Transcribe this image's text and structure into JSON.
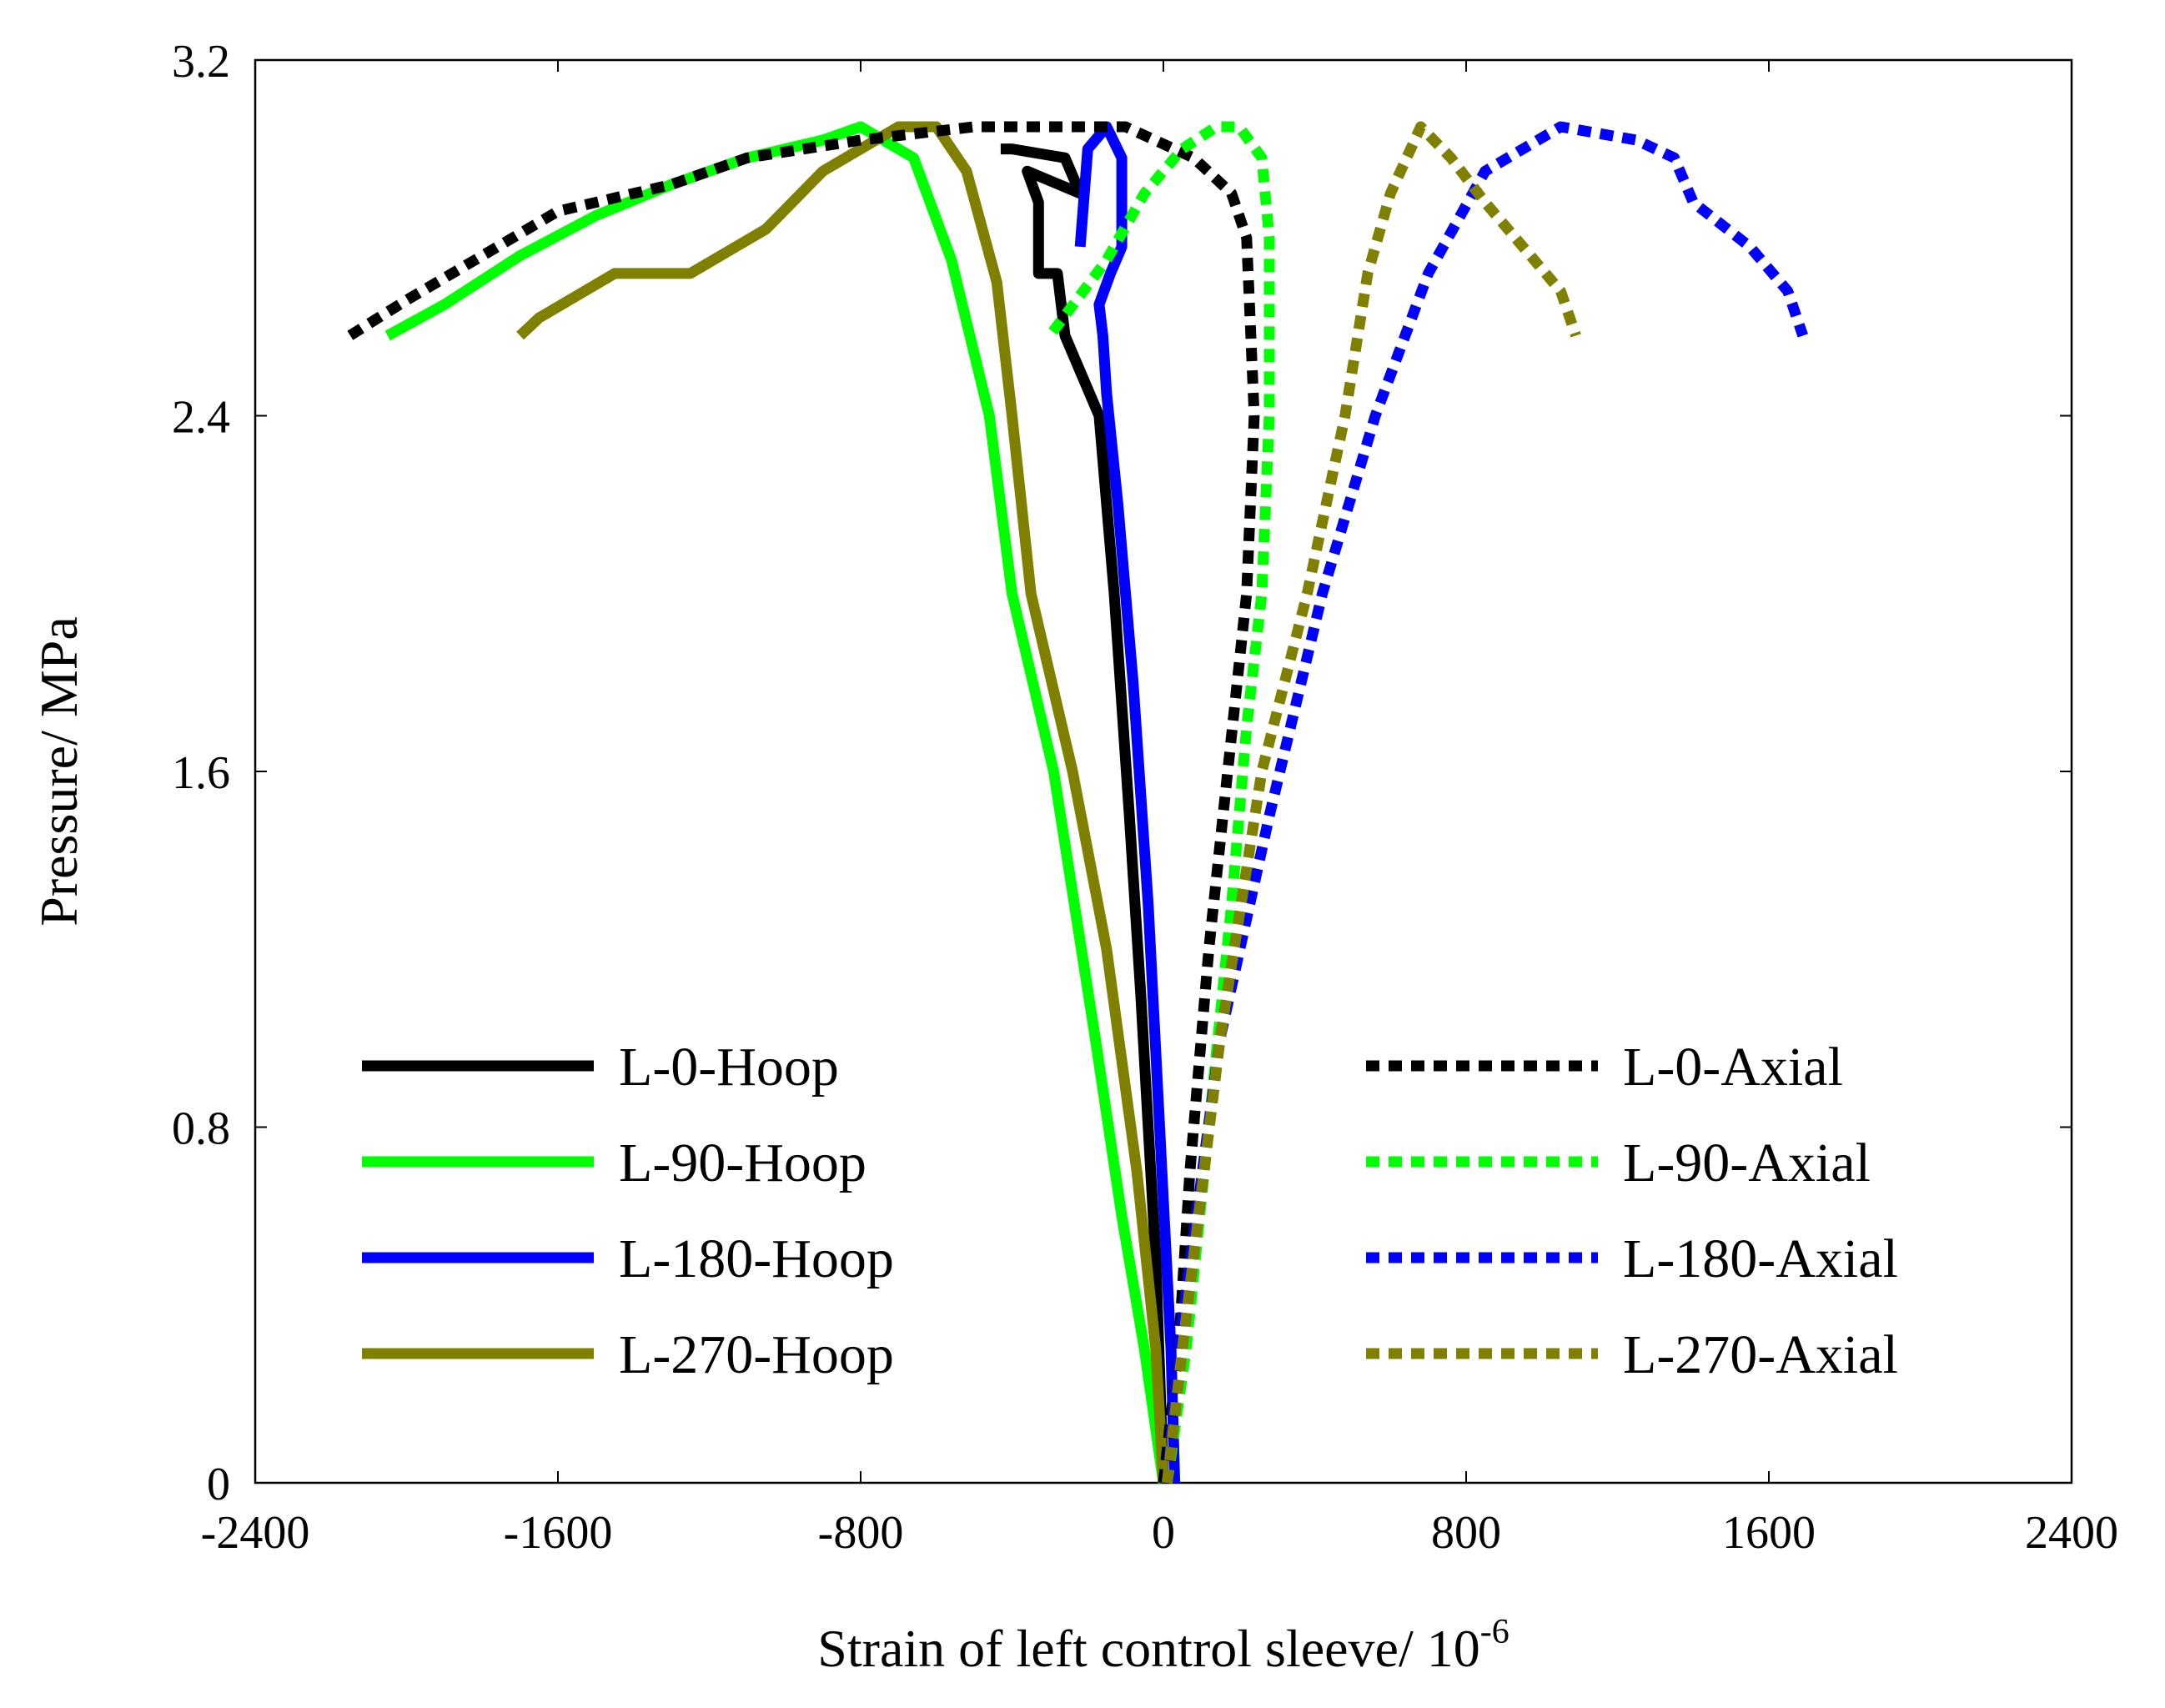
{
  "chart_data": {
    "type": "line",
    "title": "",
    "xlabel": "Strain of left control sleeve/ 10",
    "xlabel_exponent": "-6",
    "ylabel": "Pressure/ MPa",
    "xlim": [
      -2400,
      2400
    ],
    "ylim": [
      0,
      3.2
    ],
    "x_ticks": [
      -2400,
      -1600,
      -800,
      0,
      800,
      1600,
      2400
    ],
    "x_tick_labels": [
      "-2400",
      "-1600",
      "-800",
      "0",
      "800",
      "1600",
      "2400"
    ],
    "y_ticks": [
      0,
      0.8,
      1.6,
      2.4,
      3.2
    ],
    "y_tick_labels": [
      "0",
      "0.8",
      "1.6",
      "2.4",
      "3.2"
    ],
    "grid": false,
    "series": [
      {
        "name": "L-0-Hoop",
        "color": "#000000",
        "dash": "solid",
        "legend_col": 0,
        "legend_row": 0,
        "points": [
          [
            0,
            0
          ],
          [
            -10,
            0.25
          ],
          [
            -20,
            0.5
          ],
          [
            -40,
            0.8
          ],
          [
            -60,
            1.1
          ],
          [
            -90,
            1.5
          ],
          [
            -130,
            2.0
          ],
          [
            -170,
            2.4
          ],
          [
            -260,
            2.58
          ],
          [
            -280,
            2.72
          ],
          [
            -330,
            2.72
          ],
          [
            -330,
            2.88
          ],
          [
            -360,
            2.95
          ],
          [
            -220,
            2.9
          ],
          [
            -260,
            2.98
          ],
          [
            -400,
            3.0
          ],
          [
            -430,
            3.0
          ]
        ]
      },
      {
        "name": "L-90-Hoop",
        "color": "#00ff00",
        "dash": "solid",
        "legend_col": 0,
        "legend_row": 1,
        "points": [
          [
            0,
            0
          ],
          [
            -50,
            0.3
          ],
          [
            -110,
            0.6
          ],
          [
            -180,
            1.0
          ],
          [
            -290,
            1.6
          ],
          [
            -400,
            2.0
          ],
          [
            -460,
            2.4
          ],
          [
            -560,
            2.75
          ],
          [
            -660,
            2.98
          ],
          [
            -800,
            3.05
          ],
          [
            -900,
            3.02
          ],
          [
            -1100,
            2.98
          ],
          [
            -1300,
            2.92
          ],
          [
            -1500,
            2.85
          ],
          [
            -1700,
            2.76
          ],
          [
            -1900,
            2.65
          ],
          [
            -2050,
            2.58
          ]
        ]
      },
      {
        "name": "L-180-Hoop",
        "color": "#0000ff",
        "dash": "solid",
        "legend_col": 0,
        "legend_row": 2,
        "points": [
          [
            30,
            0
          ],
          [
            20,
            0.3
          ],
          [
            -10,
            0.8
          ],
          [
            -40,
            1.3
          ],
          [
            -80,
            1.8
          ],
          [
            -120,
            2.2
          ],
          [
            -150,
            2.45
          ],
          [
            -160,
            2.58
          ],
          [
            -170,
            2.65
          ],
          [
            -140,
            2.72
          ],
          [
            -110,
            2.78
          ],
          [
            -110,
            2.98
          ],
          [
            -150,
            3.05
          ],
          [
            -200,
            3.0
          ],
          [
            -220,
            2.78
          ]
        ]
      },
      {
        "name": "L-270-Hoop",
        "color": "#808000",
        "dash": "solid",
        "legend_col": 0,
        "legend_row": 3,
        "points": [
          [
            0,
            0
          ],
          [
            -20,
            0.3
          ],
          [
            -70,
            0.7
          ],
          [
            -150,
            1.2
          ],
          [
            -240,
            1.6
          ],
          [
            -350,
            2.0
          ],
          [
            -400,
            2.4
          ],
          [
            -440,
            2.7
          ],
          [
            -520,
            2.95
          ],
          [
            -600,
            3.05
          ],
          [
            -700,
            3.05
          ],
          [
            -800,
            3.0
          ],
          [
            -900,
            2.95
          ],
          [
            -1050,
            2.82
          ],
          [
            -1250,
            2.72
          ],
          [
            -1450,
            2.72
          ],
          [
            -1650,
            2.62
          ],
          [
            -1700,
            2.58
          ]
        ]
      }
    ],
    "series_axial": [
      {
        "name": "L-0-Axial",
        "color": "#000000",
        "dash": "dotted",
        "legend_col": 1,
        "legend_row": 0,
        "points": [
          [
            0,
            0
          ],
          [
            40,
            0.3
          ],
          [
            70,
            0.7
          ],
          [
            120,
            1.2
          ],
          [
            170,
            1.6
          ],
          [
            220,
            2.0
          ],
          [
            240,
            2.4
          ],
          [
            230,
            2.6
          ],
          [
            220,
            2.8
          ],
          [
            180,
            2.9
          ],
          [
            80,
            2.98
          ],
          [
            -100,
            3.05
          ],
          [
            -300,
            3.05
          ],
          [
            -500,
            3.05
          ],
          [
            -800,
            3.02
          ],
          [
            -1100,
            2.98
          ],
          [
            -1300,
            2.92
          ],
          [
            -1600,
            2.86
          ],
          [
            -1800,
            2.76
          ],
          [
            -2000,
            2.66
          ],
          [
            -2150,
            2.58
          ]
        ]
      },
      {
        "name": "L-90-Axial",
        "color": "#00ff00",
        "dash": "dotted",
        "legend_col": 1,
        "legend_row": 1,
        "points": [
          [
            10,
            0
          ],
          [
            60,
            0.3
          ],
          [
            120,
            0.8
          ],
          [
            180,
            1.3
          ],
          [
            220,
            1.7
          ],
          [
            260,
            2.0
          ],
          [
            280,
            2.4
          ],
          [
            280,
            2.8
          ],
          [
            260,
            2.98
          ],
          [
            200,
            3.05
          ],
          [
            140,
            3.05
          ],
          [
            50,
            3.0
          ],
          [
            -50,
            2.9
          ],
          [
            -150,
            2.75
          ],
          [
            -300,
            2.58
          ]
        ]
      },
      {
        "name": "L-180-Axial",
        "color": "#0000ff",
        "dash": "dotted",
        "legend_col": 1,
        "legend_row": 2,
        "points": [
          [
            10,
            0
          ],
          [
            40,
            0.3
          ],
          [
            150,
            1.0
          ],
          [
            280,
            1.5
          ],
          [
            420,
            2.0
          ],
          [
            560,
            2.4
          ],
          [
            700,
            2.72
          ],
          [
            850,
            2.95
          ],
          [
            1050,
            3.05
          ],
          [
            1250,
            3.02
          ],
          [
            1350,
            2.98
          ],
          [
            1400,
            2.88
          ],
          [
            1550,
            2.78
          ],
          [
            1650,
            2.68
          ],
          [
            1690,
            2.58
          ]
        ]
      },
      {
        "name": "L-270-Axial",
        "color": "#808000",
        "dash": "dotted",
        "legend_col": 1,
        "legend_row": 3,
        "points": [
          [
            10,
            0
          ],
          [
            50,
            0.3
          ],
          [
            150,
            1.0
          ],
          [
            260,
            1.6
          ],
          [
            380,
            2.0
          ],
          [
            480,
            2.4
          ],
          [
            540,
            2.72
          ],
          [
            600,
            2.9
          ],
          [
            680,
            3.05
          ],
          [
            760,
            2.98
          ],
          [
            850,
            2.88
          ],
          [
            950,
            2.78
          ],
          [
            1050,
            2.68
          ],
          [
            1090,
            2.58
          ]
        ]
      }
    ]
  }
}
